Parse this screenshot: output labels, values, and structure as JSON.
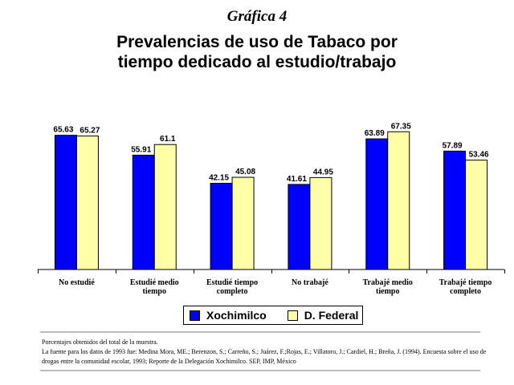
{
  "header": {
    "label": "Gráfica 4",
    "title_line1": "Prevalencias de uso de Tabaco por",
    "title_line2": "tiempo dedicado al estudio/trabajo"
  },
  "chart_data": {
    "type": "bar",
    "title": "Prevalencias de uso de Tabaco por tiempo dedicado al estudio/trabajo",
    "categories": [
      [
        "No estudié"
      ],
      [
        "Estudié medio",
        "tiempo"
      ],
      [
        "Estudié tiempo",
        "completo"
      ],
      [
        "No trabajé"
      ],
      [
        "Trabajé medio",
        "tiempo"
      ],
      [
        "Trabajé tiempo",
        "completo"
      ]
    ],
    "series": [
      {
        "name": "Xochimilco",
        "color": "#0000ff",
        "values": [
          65.63,
          55.91,
          42.15,
          41.61,
          63.89,
          57.89
        ]
      },
      {
        "name": "D. Federal",
        "color": "#ffffa8",
        "values": [
          65.27,
          61.1,
          45.08,
          44.95,
          67.35,
          53.46
        ]
      }
    ],
    "xlabel": "",
    "ylabel": "",
    "grid": false,
    "legend_position": "bottom"
  },
  "notes": {
    "line1": "Porcentajes obtenidos del total de la muestra.",
    "line2": "La fuente para los datos de 1993 fue: Medina Mora, ME.; Berenzon, S.; Carreño, S.; Juárez, F.;Rojas, E.; Villatoro, J.; Cardiel, H.; Breña, J. (1994). Encuesta sobre el uso de drogas entre la comunidad escolar, 1993; Reporte de la Delegación Xochimilco. SEP, IMP, México"
  }
}
